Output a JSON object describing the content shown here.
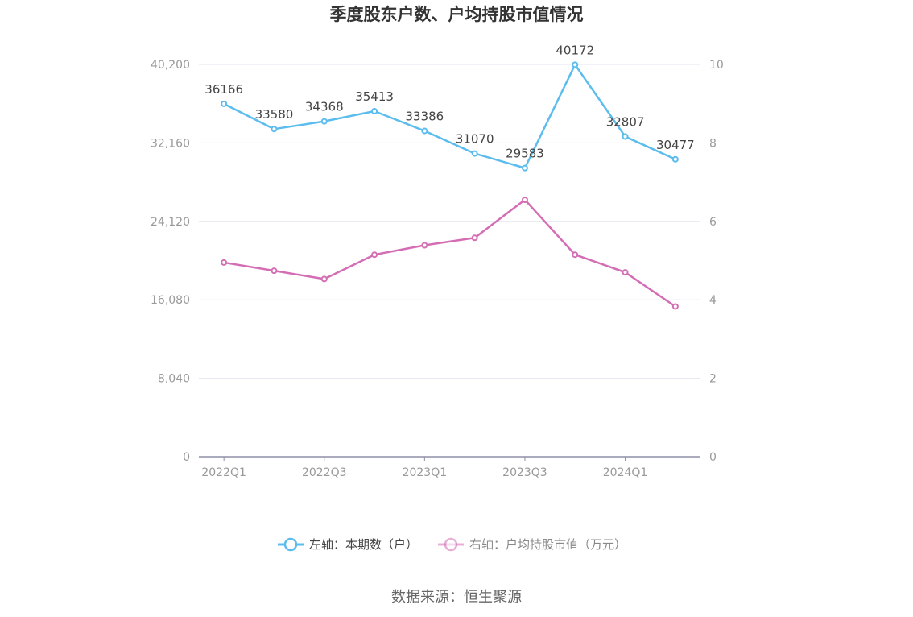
{
  "chart_data": {
    "type": "line",
    "title": "季度股东户数、户均持股市值情况",
    "categories": [
      "2022Q1",
      "2022Q2",
      "2022Q3",
      "2022Q4",
      "2023Q1",
      "2023Q2",
      "2023Q3",
      "2023Q4",
      "2024Q1",
      "2024Q2"
    ],
    "x_tick_labels": [
      "2022Q1",
      "2022Q3",
      "2023Q1",
      "2023Q3",
      "2024Q1"
    ],
    "y_left": {
      "ticks": [
        "0",
        "8,040",
        "16,080",
        "24,120",
        "32,160",
        "40,200"
      ],
      "min": 0,
      "max": 40200
    },
    "y_right": {
      "ticks": [
        "0",
        "2",
        "4",
        "6",
        "8",
        "10"
      ],
      "min": 0,
      "max": 10
    },
    "series": [
      {
        "name": "左轴：本期数（户）",
        "axis": "left",
        "color": "#5bbcee",
        "values": [
          36166,
          33580,
          34368,
          35413,
          33386,
          31070,
          29583,
          40172,
          32807,
          30477
        ],
        "labels": [
          "36166",
          "33580",
          "34368",
          "35413",
          "33386",
          "31070",
          "29583",
          "40172",
          "32807",
          "30477"
        ]
      },
      {
        "name": "右轴：户均持股市值（万元）",
        "axis": "right",
        "color": "#d46eb4",
        "values": [
          4.95,
          4.74,
          4.53,
          5.15,
          5.39,
          5.58,
          6.55,
          5.15,
          4.7,
          3.83
        ]
      }
    ],
    "grid": true,
    "legend_position": "bottom"
  },
  "source": "数据来源：恒生聚源"
}
